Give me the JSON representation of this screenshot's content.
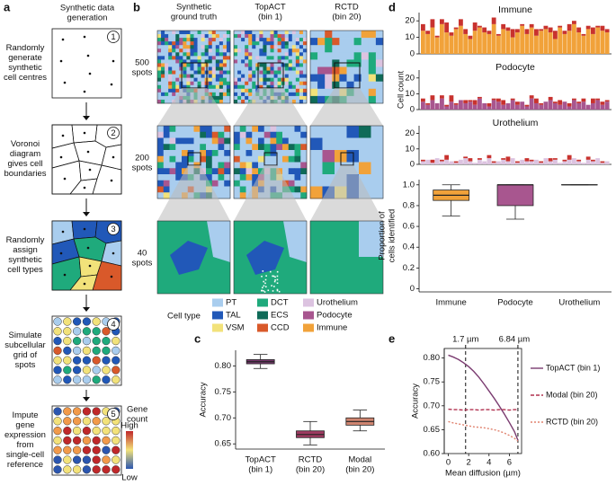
{
  "panel_labels": [
    "a",
    "b",
    "c",
    "d",
    "e"
  ],
  "panels": {
    "a": {
      "title": [
        "Synthetic data",
        "generation"
      ],
      "steps": [
        {
          "number": "1",
          "text": [
            "Randomly",
            "generate",
            "synthetic",
            "cell centres"
          ]
        },
        {
          "number": "2",
          "text": [
            "Voronoi",
            "diagram",
            "gives cell",
            "boundaries"
          ]
        },
        {
          "number": "3",
          "text": [
            "Randomly",
            "assign",
            "synthetic",
            "cell types"
          ]
        },
        {
          "number": "4",
          "text": [
            "Simulate",
            "subcellular",
            "grid of",
            "spots"
          ]
        },
        {
          "number": "5",
          "text": [
            "Impute",
            "gene",
            "expression",
            "from",
            "single-cell",
            "reference"
          ]
        }
      ],
      "colorbar": {
        "title": [
          "Gene",
          "count"
        ],
        "high": "High",
        "low": "Low"
      }
    },
    "b": {
      "columns": [
        [
          "Synthetic",
          "ground truth"
        ],
        [
          "TopACT",
          "(bin 1)"
        ],
        [
          "RCTD",
          "(bin 20)"
        ]
      ],
      "rows": [
        [
          "500",
          "spots"
        ],
        [
          "200",
          "spots"
        ],
        [
          "40",
          "spots"
        ]
      ],
      "legend": {
        "title": "Cell type",
        "items": [
          {
            "label": "PT",
            "color": "#a9cdee"
          },
          {
            "label": "TAL",
            "color": "#2158b8"
          },
          {
            "label": "VSM",
            "color": "#f2e27a"
          },
          {
            "label": "DCT",
            "color": "#1faa7c"
          },
          {
            "label": "ECS",
            "color": "#0f6b58"
          },
          {
            "label": "CCD",
            "color": "#d9592a"
          },
          {
            "label": "Urothelium",
            "color": "#dcc3e0"
          },
          {
            "label": "Podocyte",
            "color": "#a8568f"
          },
          {
            "label": "Immune",
            "color": "#f1a23a"
          }
        ]
      }
    }
  },
  "chart_data": [
    {
      "type": "box",
      "ylabel": [
        "Accuracy"
      ],
      "categories": [
        "TopACT",
        "RCTD",
        "Modal"
      ],
      "category_bins": [
        "(bin 1)",
        "(bin 20)",
        "(bin 20)"
      ],
      "boxes": [
        {
          "whislo": 0.795,
          "q1": 0.804,
          "med": 0.808,
          "q3": 0.812,
          "whishi": 0.822,
          "color": "#7a3b70"
        },
        {
          "whislo": 0.648,
          "q1": 0.662,
          "med": 0.668,
          "q3": 0.675,
          "whishi": 0.693,
          "color": "#9e3a60"
        },
        {
          "whislo": 0.675,
          "q1": 0.686,
          "med": 0.693,
          "q3": 0.7,
          "whishi": 0.715,
          "color": "#d08570"
        }
      ],
      "ylim": [
        0.64,
        0.83
      ],
      "yticks": [
        0.65,
        {
          "value": 0.7,
          "label": "0.70"
        },
        0.75,
        {
          "value": 0.8,
          "label": "0.80"
        }
      ]
    },
    {
      "type": "bar",
      "title": "Immune",
      "ylim": [
        0,
        25
      ],
      "yticks": [
        0,
        10,
        20
      ],
      "series": [
        {
          "color": "#f1a23a",
          "values": [
            14,
            12,
            16,
            10,
            18,
            13,
            11,
            15,
            17,
            12,
            9,
            14,
            16,
            13,
            12,
            18,
            11,
            15,
            14,
            10,
            13,
            17,
            12,
            16,
            11,
            14,
            15,
            13,
            9,
            16,
            12,
            14,
            18,
            13,
            11,
            15,
            12,
            16,
            14,
            13
          ]
        },
        {
          "color": "#c8322e",
          "values": [
            4,
            2,
            5,
            1,
            3,
            6,
            2,
            1,
            4,
            3,
            2,
            5,
            1,
            3,
            2,
            4,
            1,
            3,
            2,
            5,
            2,
            1,
            3,
            2,
            4,
            1,
            2,
            3,
            5,
            1,
            2,
            4,
            2,
            3,
            1,
            2,
            4,
            1,
            3,
            2
          ]
        }
      ]
    },
    {
      "type": "bar",
      "title": "Podocyte",
      "ylabel": "Cell count",
      "ylim": [
        0,
        25
      ],
      "yticks": [
        0,
        10,
        20
      ],
      "series": [
        {
          "color": "#a8568f",
          "values": [
            5,
            3,
            6,
            4,
            7,
            2,
            5,
            3,
            6,
            4,
            5,
            3,
            7,
            4,
            2,
            6,
            5,
            3,
            4,
            6,
            3,
            5,
            2,
            7,
            4,
            3,
            5,
            6,
            4,
            3,
            5,
            2,
            6,
            4,
            5,
            3,
            4,
            6,
            3,
            5
          ]
        },
        {
          "color": "#c8322e",
          "values": [
            2,
            1,
            3,
            0,
            2,
            1,
            4,
            1,
            0,
            2,
            1,
            3,
            1,
            0,
            2,
            1,
            2,
            3,
            0,
            1,
            2,
            0,
            1,
            2,
            3,
            1,
            0,
            2,
            1,
            3,
            0,
            2,
            1,
            1,
            2,
            0,
            3,
            1,
            2,
            1
          ]
        }
      ]
    },
    {
      "type": "bar",
      "title": "Urothelium",
      "ylim": [
        0,
        25
      ],
      "yticks": [
        0,
        10,
        20
      ],
      "series": [
        {
          "color": "#dcc3e0",
          "values": [
            2,
            3,
            1,
            4,
            2,
            3,
            2,
            1,
            3,
            4,
            2,
            1,
            3,
            2,
            4,
            1,
            2,
            3,
            2,
            4,
            1,
            3,
            2,
            2,
            3,
            1,
            4,
            2,
            3,
            1,
            2,
            3,
            4,
            2,
            1,
            3,
            2,
            4,
            1,
            2
          ]
        },
        {
          "color": "#c8322e",
          "values": [
            1,
            0,
            2,
            0,
            1,
            3,
            0,
            1,
            0,
            1,
            2,
            0,
            1,
            0,
            2,
            1,
            0,
            1,
            3,
            0,
            1,
            0,
            2,
            1,
            0,
            1,
            0,
            2,
            1,
            0,
            1,
            3,
            0,
            1,
            0,
            2,
            1,
            0,
            1,
            0
          ]
        }
      ]
    },
    {
      "type": "box",
      "ylabel": [
        "Proportion of",
        "cells identified"
      ],
      "categories": [
        "Immune",
        "Podocyte",
        "Urothelium"
      ],
      "boxes": [
        {
          "whislo": 0.7,
          "q1": 0.85,
          "med": 0.9,
          "q3": 0.95,
          "whishi": 1.0,
          "color": "#f1a23a"
        },
        {
          "whislo": 0.67,
          "q1": 0.8,
          "med": 1.0,
          "q3": 1.0,
          "whishi": 1.0,
          "color": "#a8568f"
        },
        {
          "whislo": 1.0,
          "q1": 1.0,
          "med": 1.0,
          "q3": 1.0,
          "whishi": 1.0,
          "color": "#dcc3e0"
        }
      ],
      "ylim": [
        -0.03,
        1.05
      ],
      "yticks": [
        0,
        0.2,
        0.4,
        0.6,
        0.8,
        {
          "value": 1,
          "label": "1.0"
        }
      ]
    },
    {
      "type": "line",
      "xlabel": "Mean diffusion (µm)",
      "ylabel": "Accuracy",
      "x": [
        0,
        0.5,
        1,
        1.5,
        2,
        2.5,
        3,
        3.5,
        4,
        4.5,
        5,
        5.5,
        6,
        6.5,
        6.84
      ],
      "series": [
        {
          "name": "TopACT (bin 1)",
          "color": "#7a3b70",
          "dash": "",
          "values": [
            0.806,
            0.802,
            0.797,
            0.79,
            0.782,
            0.772,
            0.76,
            0.746,
            0.731,
            0.716,
            0.7,
            0.683,
            0.665,
            0.646,
            0.628
          ]
        },
        {
          "name": "Modal (bin 20)",
          "color": "#b0304f",
          "dash": "4 2",
          "values": [
            0.693,
            0.692,
            0.692,
            0.691,
            0.692,
            0.692,
            0.691,
            0.692,
            0.692,
            0.691,
            0.692,
            0.692,
            0.691,
            0.692,
            0.692
          ]
        },
        {
          "name": "RCTD (bin 20)",
          "color": "#e0826e",
          "dash": "2 2",
          "values": [
            0.667,
            0.664,
            0.662,
            0.66,
            0.658,
            0.656,
            0.655,
            0.654,
            0.652,
            0.65,
            0.647,
            0.643,
            0.638,
            0.632,
            0.626
          ]
        }
      ],
      "vlines": [
        {
          "value": 1.7,
          "label": "1.7 µm"
        },
        {
          "value": 6.84,
          "label": "6.84 µm"
        }
      ],
      "xlim": [
        -0.4,
        7.2
      ],
      "xticks": [
        0,
        2,
        4,
        6
      ],
      "ylim": [
        0.6,
        0.82
      ],
      "yticks": [
        {
          "value": 0.6,
          "label": "0.60"
        },
        0.65,
        {
          "value": 0.7,
          "label": "0.70"
        },
        0.75,
        {
          "value": 0.8,
          "label": "0.80"
        }
      ]
    }
  ]
}
